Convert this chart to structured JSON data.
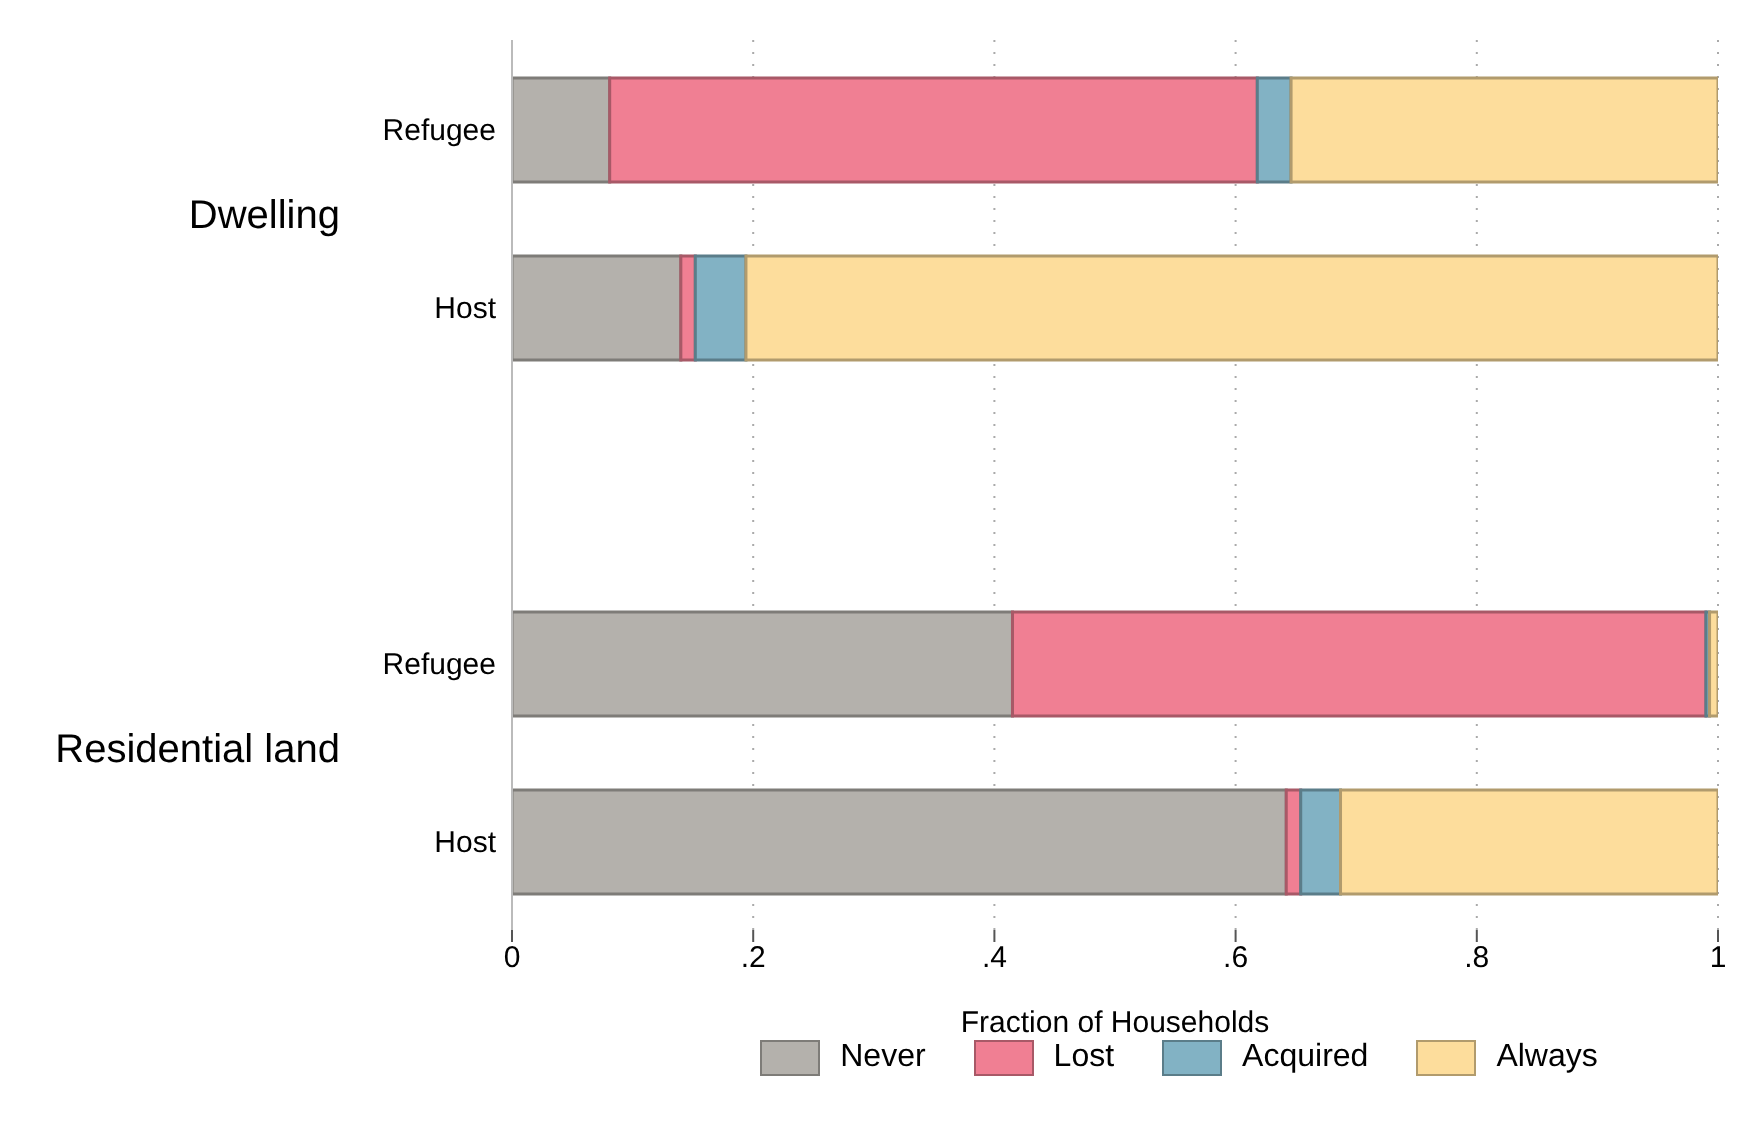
{
  "chart_data": {
    "type": "bar",
    "orientation": "horizontal",
    "stacked": true,
    "categories": [
      "Refugee",
      "Host",
      null,
      "Refugee",
      "Host"
    ],
    "series": [
      {
        "name": "Never",
        "color": "#b4b1ac",
        "values": [
          0.081,
          0.14,
          null,
          0.415,
          0.642
        ]
      },
      {
        "name": "Lost",
        "color": "#f07f93",
        "values": [
          0.537,
          0.012,
          null,
          0.575,
          0.012
        ]
      },
      {
        "name": "Acquired",
        "color": "#82b2c4",
        "values": [
          0.028,
          0.042,
          null,
          0.003,
          0.033
        ]
      },
      {
        "name": "Always",
        "color": "#fddd9c",
        "values": [
          0.354,
          0.806,
          null,
          0.007,
          0.313
        ]
      }
    ],
    "xlim": [
      0,
      1
    ],
    "xticks": [
      0,
      {
        "value": 0.2,
        "label": ".2"
      },
      {
        "value": 0.4,
        "label": ".4"
      },
      {
        "value": 0.6,
        "label": ".6"
      },
      {
        "value": 0.8,
        "label": ".8"
      },
      1
    ],
    "xlabel": "Fraction of Households",
    "annotations": [
      "Dwelling",
      "Residential land"
    ],
    "grid": "x",
    "legend": "bottom"
  }
}
